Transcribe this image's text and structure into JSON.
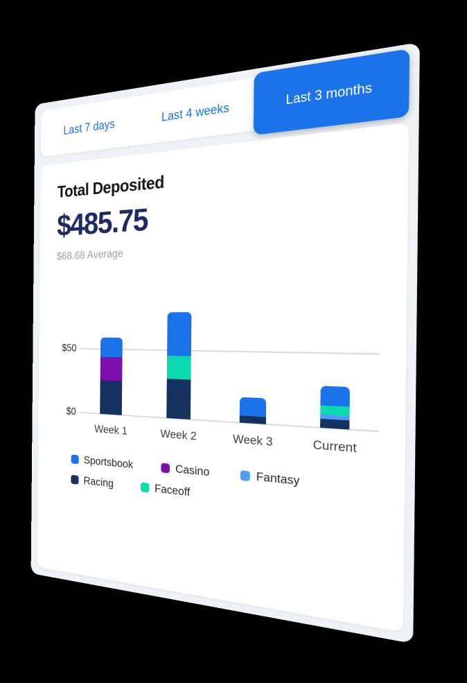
{
  "page": {
    "background": "#000000",
    "panel_bg": "#eef1f5",
    "card_bg": "#ffffff"
  },
  "tabs": {
    "items": [
      {
        "label": "Last 7 days",
        "active": false
      },
      {
        "label": "Last 4 weeks",
        "active": false
      },
      {
        "label": "Last 3 months",
        "active": true
      }
    ],
    "accent": "#1a73e8"
  },
  "summary": {
    "title": "Total Deposited",
    "amount": "$485.75",
    "amount_color": "#1e2b63",
    "average": "$68.68 Average"
  },
  "chart_data": {
    "type": "bar",
    "stacked": true,
    "title": "Total Deposited",
    "xlabel": "",
    "ylabel": "",
    "categories": [
      "Week 1",
      "Week 2",
      "Week 3",
      "Current"
    ],
    "series": [
      {
        "name": "Racing",
        "color": "#14315f",
        "values": [
          26,
          29,
          5,
          6
        ]
      },
      {
        "name": "Casino",
        "color": "#7d10ad",
        "values": [
          18,
          0,
          0,
          0
        ]
      },
      {
        "name": "Fantasy",
        "color": "#4d9df7",
        "values": [
          0,
          0,
          0,
          3
        ]
      },
      {
        "name": "Faceoff",
        "color": "#0bdab0",
        "values": [
          0,
          17,
          0,
          6
        ]
      },
      {
        "name": "Sportsbook",
        "color": "#1a73e8",
        "values": [
          15,
          32,
          13,
          13
        ]
      }
    ],
    "totals": [
      59,
      78,
      18,
      28
    ],
    "yticks": [
      {
        "label": "$0",
        "value": 0
      },
      {
        "label": "$50",
        "value": 50
      }
    ],
    "ylim": [
      0,
      95
    ],
    "grid": "horizontal",
    "gridline_color": "#d5dce6",
    "legend_position": "bottom",
    "legend_rows": [
      [
        "Sportsbook",
        "Casino",
        "Fantasy"
      ],
      [
        "Racing",
        "Faceoff"
      ]
    ]
  }
}
